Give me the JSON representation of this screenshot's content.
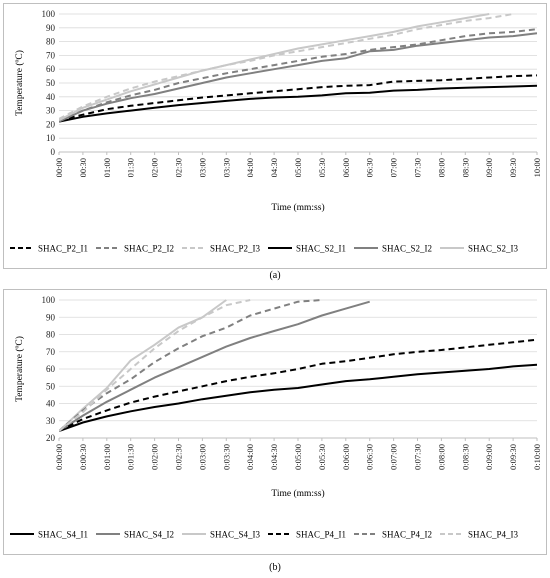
{
  "chart_data": [
    {
      "type": "line",
      "caption": "(a)",
      "xlabel": "Time (mm:ss)",
      "ylabel": "Temperature (ºC)",
      "ylim": [
        0,
        100
      ],
      "yticks": [
        0,
        10,
        20,
        30,
        40,
        50,
        60,
        70,
        80,
        90,
        100
      ],
      "xlim": [
        0,
        600
      ],
      "x_tick_labels": [
        "00:00",
        "00:30",
        "01:00",
        "01:30",
        "02:00",
        "02:30",
        "03:00",
        "03:30",
        "04:00",
        "04:30",
        "05:00",
        "05:30",
        "06:00",
        "06:30",
        "07:00",
        "07:30",
        "08:00",
        "08:30",
        "09:00",
        "09:30",
        "10:00"
      ],
      "grid": true,
      "legend_position": "bottom",
      "series": [
        {
          "name": "SHAC_P2_I1",
          "color": "#000000",
          "dash": "dashed",
          "x": [
            0,
            30,
            60,
            90,
            120,
            150,
            180,
            210,
            240,
            270,
            300,
            330,
            360,
            390,
            420,
            450,
            480,
            510,
            540,
            570,
            600
          ],
          "y": [
            23,
            27,
            31,
            33.5,
            35.5,
            37.5,
            39.5,
            41,
            42.5,
            44,
            45.5,
            47,
            48,
            48.5,
            51,
            51.5,
            52,
            53,
            54,
            55,
            55.5
          ]
        },
        {
          "name": "SHAC_P2_I2",
          "color": "#808080",
          "dash": "dashed",
          "x": [
            0,
            30,
            60,
            90,
            120,
            150,
            180,
            210,
            240,
            270,
            300,
            330,
            360,
            390,
            420,
            450,
            480,
            510,
            540,
            570,
            600
          ],
          "y": [
            23,
            30,
            36,
            41,
            45,
            50,
            53.5,
            57,
            60,
            63,
            66,
            69,
            71,
            74,
            76,
            78,
            81,
            84,
            86,
            87,
            89
          ]
        },
        {
          "name": "SHAC_P2_I3",
          "color": "#c8c8c8",
          "dash": "dashed",
          "x": [
            0,
            30,
            60,
            90,
            120,
            150,
            180,
            210,
            240,
            270,
            300,
            330,
            360,
            390,
            420,
            450,
            480,
            510,
            540,
            570
          ],
          "y": [
            24,
            33,
            40,
            46,
            51,
            55,
            59,
            63,
            66,
            70,
            73,
            76,
            79,
            82,
            85,
            89,
            92,
            95,
            97,
            100
          ]
        },
        {
          "name": "SHAC_S2_I1",
          "color": "#000000",
          "dash": "solid",
          "x": [
            0,
            30,
            60,
            90,
            120,
            150,
            180,
            210,
            240,
            270,
            300,
            330,
            360,
            390,
            420,
            450,
            480,
            510,
            540,
            570,
            600
          ],
          "y": [
            22,
            25.5,
            28,
            30,
            32,
            34,
            35.5,
            37,
            38.5,
            39.5,
            40,
            41,
            42.5,
            43,
            44.5,
            45,
            46,
            46.5,
            47,
            47.5,
            48
          ]
        },
        {
          "name": "SHAC_S2_I2",
          "color": "#808080",
          "dash": "solid",
          "x": [
            0,
            30,
            60,
            90,
            120,
            150,
            180,
            210,
            240,
            270,
            300,
            330,
            360,
            390,
            420,
            450,
            480,
            510,
            540,
            570,
            600
          ],
          "y": [
            22,
            30,
            35,
            39,
            42,
            46,
            50,
            54,
            57,
            60,
            63,
            66,
            68,
            73,
            74,
            77,
            79,
            81,
            83,
            84,
            86
          ]
        },
        {
          "name": "SHAC_S2_I3",
          "color": "#c8c8c8",
          "dash": "solid",
          "x": [
            0,
            30,
            60,
            90,
            120,
            150,
            180,
            210,
            240,
            270,
            300,
            330,
            360,
            390,
            420,
            450,
            480,
            510,
            540
          ],
          "y": [
            23,
            32,
            38,
            44,
            49,
            54,
            59,
            63,
            67,
            71,
            75,
            78,
            81,
            84,
            87,
            91,
            94,
            97,
            100
          ]
        }
      ]
    },
    {
      "type": "line",
      "caption": "(b)",
      "xlabel": "Time (mm:ss)",
      "ylabel": "Temperature (ºC)",
      "ylim": [
        20,
        100
      ],
      "yticks": [
        20,
        30,
        40,
        50,
        60,
        70,
        80,
        90,
        100
      ],
      "xlim": [
        0,
        600
      ],
      "x_tick_labels": [
        "0:00:00",
        "0:00:30",
        "0:01:00",
        "0:01:30",
        "0:02:00",
        "0:02:30",
        "0:03:00",
        "0:03:30",
        "0:04:00",
        "0:04:30",
        "0:05:00",
        "0:05:30",
        "0:06:00",
        "0:06:30",
        "0:07:00",
        "0:07:30",
        "0:08:00",
        "0:08:30",
        "0:09:00",
        "0:09:30",
        "0:10:00"
      ],
      "grid": true,
      "legend_position": "bottom",
      "series": [
        {
          "name": "SHAC_S4_I1",
          "color": "#000000",
          "dash": "solid",
          "x": [
            0,
            30,
            60,
            90,
            120,
            150,
            180,
            210,
            240,
            270,
            300,
            330,
            360,
            390,
            420,
            450,
            480,
            510,
            540,
            570,
            600
          ],
          "y": [
            24,
            29,
            32.5,
            35.5,
            38,
            40,
            42.5,
            44.5,
            46.5,
            48,
            49,
            51,
            53,
            54,
            55.5,
            57,
            58,
            59,
            60,
            61.5,
            62.5
          ]
        },
        {
          "name": "SHAC_S4_I2",
          "color": "#808080",
          "dash": "solid",
          "x": [
            0,
            30,
            60,
            90,
            120,
            150,
            180,
            210,
            240,
            270,
            300,
            330,
            360,
            390
          ],
          "y": [
            24,
            33,
            41,
            48,
            55,
            61,
            67,
            73,
            78,
            82,
            86,
            91,
            95,
            99
          ]
        },
        {
          "name": "SHAC_S4_I3",
          "color": "#c8c8c8",
          "dash": "solid",
          "x": [
            0,
            30,
            60,
            90,
            120,
            150,
            180,
            210
          ],
          "y": [
            24,
            37,
            49,
            65,
            74,
            84,
            90,
            100
          ]
        },
        {
          "name": "SHAC_P4_I1",
          "color": "#000000",
          "dash": "dashed",
          "x": [
            0,
            30,
            60,
            90,
            120,
            150,
            180,
            210,
            240,
            270,
            300,
            330,
            360,
            390,
            420,
            450,
            480,
            510,
            540,
            570,
            600
          ],
          "y": [
            24,
            31,
            36,
            40.5,
            44,
            47,
            50,
            53,
            55.5,
            57.5,
            60,
            63,
            64.5,
            66.5,
            68.5,
            70,
            71,
            72.5,
            74,
            75.5,
            77
          ]
        },
        {
          "name": "SHAC_P4_I2",
          "color": "#808080",
          "dash": "dashed",
          "x": [
            0,
            30,
            60,
            90,
            120,
            150,
            180,
            210,
            240,
            270,
            300,
            330
          ],
          "y": [
            24,
            36,
            46,
            54,
            64,
            72,
            79,
            84,
            91,
            95,
            99,
            100
          ]
        },
        {
          "name": "SHAC_P4_I3",
          "color": "#c8c8c8",
          "dash": "dashed",
          "x": [
            0,
            30,
            60,
            90,
            120,
            150,
            180,
            210,
            240
          ],
          "y": [
            24,
            35,
            48,
            60,
            72,
            82,
            90,
            97,
            100
          ]
        }
      ]
    }
  ]
}
